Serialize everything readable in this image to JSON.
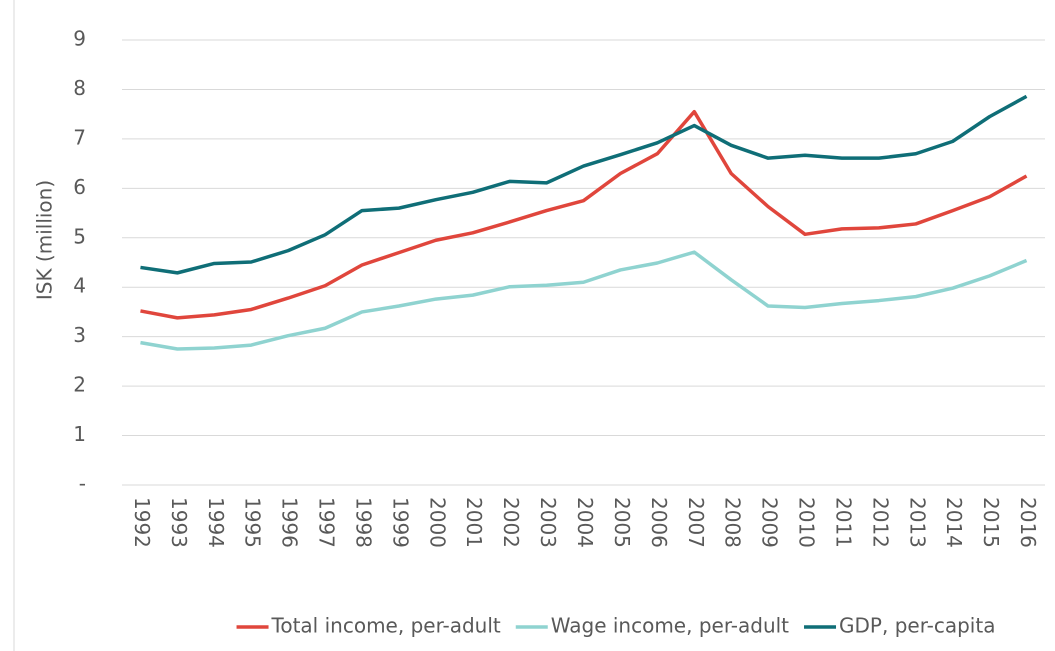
{
  "chart_data": {
    "type": "line",
    "y_label": "ISK (million)",
    "categories": [
      "1992",
      "1993",
      "1994",
      "1995",
      "1996",
      "1997",
      "1998",
      "1999",
      "2000",
      "2001",
      "2002",
      "2003",
      "2004",
      "2005",
      "2006",
      "2007",
      "2008",
      "2009",
      "2010",
      "2011",
      "2012",
      "2013",
      "2014",
      "2015",
      "2016"
    ],
    "series": [
      {
        "name": "Total income, per-adult",
        "color": "#e0463c",
        "values": [
          3.52,
          3.38,
          3.44,
          3.55,
          3.78,
          4.03,
          4.45,
          4.7,
          4.95,
          5.1,
          5.32,
          5.55,
          5.75,
          6.3,
          6.7,
          7.55,
          6.3,
          5.63,
          5.07,
          5.18,
          5.2,
          5.28,
          5.55,
          5.83,
          6.25
        ]
      },
      {
        "name": "Wage income, per-adult",
        "color": "#8fd3d0",
        "values": [
          2.88,
          2.75,
          2.77,
          2.83,
          3.02,
          3.17,
          3.5,
          3.62,
          3.76,
          3.84,
          4.01,
          4.04,
          4.1,
          4.35,
          4.49,
          4.71,
          4.15,
          3.62,
          3.59,
          3.67,
          3.73,
          3.81,
          3.98,
          4.23,
          4.54
        ]
      },
      {
        "name": "GDP, per-capita",
        "color": "#0f6e77",
        "values": [
          4.4,
          4.29,
          4.48,
          4.51,
          4.74,
          5.06,
          5.55,
          5.6,
          5.77,
          5.92,
          6.14,
          6.11,
          6.45,
          6.68,
          6.92,
          7.27,
          6.87,
          6.61,
          6.67,
          6.61,
          6.61,
          6.7,
          6.95,
          7.45,
          7.86
        ]
      }
    ],
    "ylim": [
      0,
      9
    ],
    "yticks": [
      {
        "value": 0,
        "label": "-"
      },
      1,
      2,
      3,
      4,
      5,
      6,
      7,
      8,
      9
    ],
    "grid": true
  }
}
